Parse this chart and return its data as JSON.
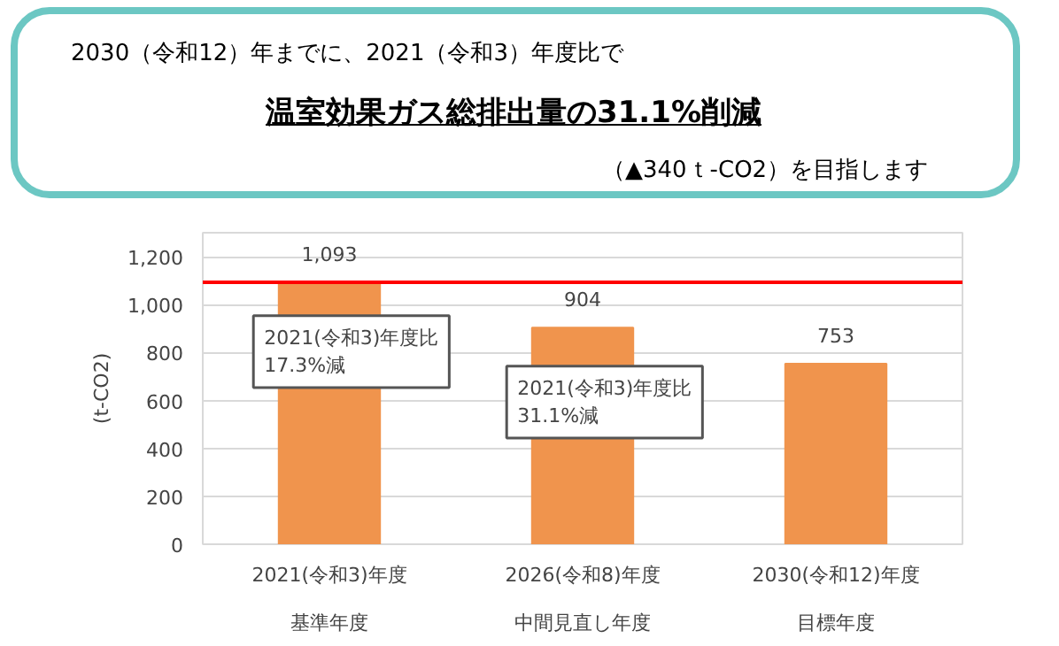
{
  "chart_data": {
    "type": "bar",
    "title": "2030（令和12）年までに、2021（令和3）年度比で",
    "subtitle": "温室効果ガス総排出量の31.1%削減",
    "ylabel": "(t-CO2)",
    "categories": [
      "2021(令和3)年度",
      "2026(令和8)年度",
      "2030(令和12)年度"
    ],
    "values": [
      1093,
      904,
      753
    ],
    "color": "#f0944d",
    "ylim": [
      0,
      1300
    ],
    "yticks": [
      0,
      200,
      400,
      600,
      800,
      {
        "value": 1000,
        "label": "1,000"
      },
      {
        "value": 1200,
        "label": "1,200"
      }
    ],
    "value_labels": [
      "1,093",
      "904",
      "753"
    ],
    "grid": "y",
    "ref_lines": [
      {
        "axis": "y",
        "value": 1093,
        "color": "#ff0000"
      }
    ],
    "annotations": [
      "（▲340ｔ-CO2）を目指します",
      "2021(令和3)年度比\n17.3%減",
      "2021(令和3)年度比\n31.1%減",
      "基準年度",
      "中間見直し年度",
      "目標年度"
    ]
  }
}
